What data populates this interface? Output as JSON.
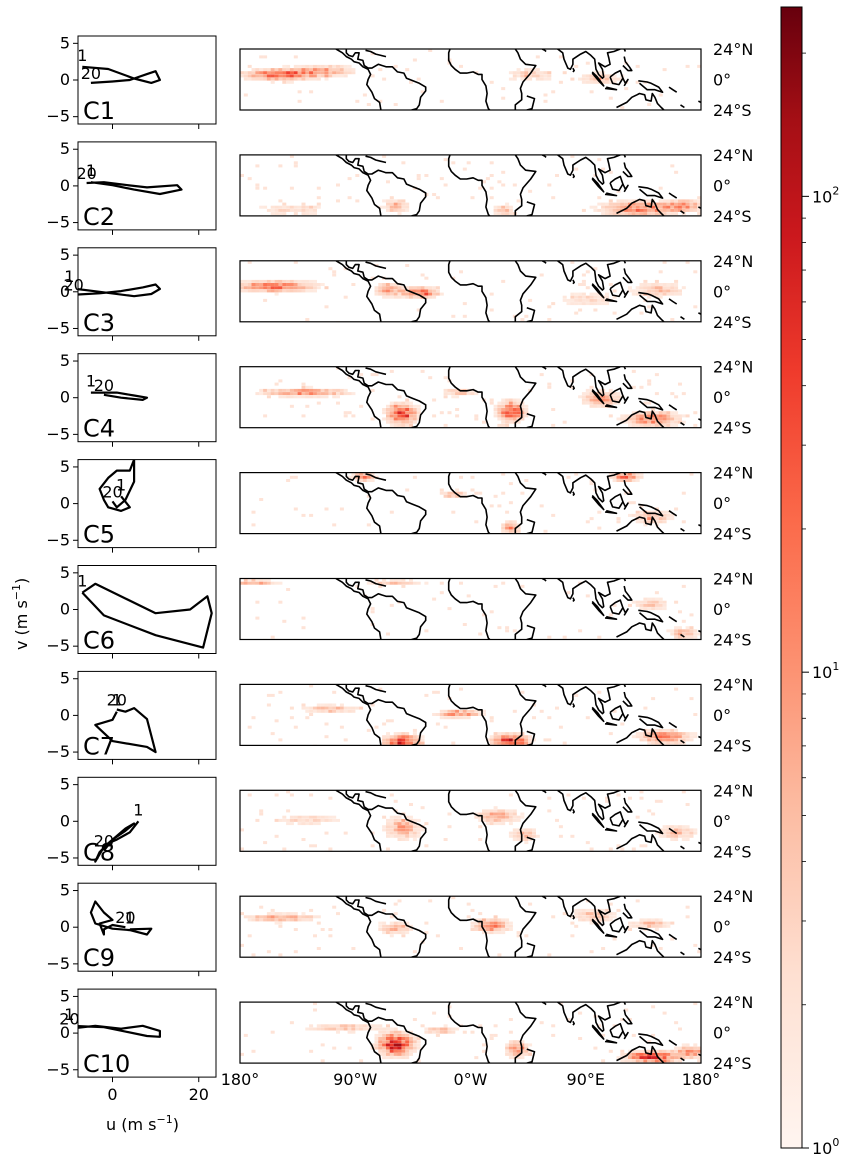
{
  "chart_data": {
    "type": "line",
    "panels": [
      {
        "label": "C1",
        "start_label": "1",
        "end_label": "20",
        "trajectory": [
          [
            -7,
            1.8
          ],
          [
            -1,
            1.5
          ],
          [
            5,
            0.2
          ],
          [
            9,
            -0.4
          ],
          [
            11,
            0
          ],
          [
            10,
            1.2
          ],
          [
            8,
            0.8
          ],
          [
            4,
            0
          ],
          [
            0,
            -0.2
          ],
          [
            -5,
            -0.4
          ]
        ]
      },
      {
        "label": "C2",
        "start_label": "1",
        "end_label": "20",
        "trajectory": [
          [
            -5,
            0.5
          ],
          [
            0,
            0.1
          ],
          [
            5,
            -0.5
          ],
          [
            11,
            -1.1
          ],
          [
            16,
            -0.5
          ],
          [
            15,
            0.1
          ],
          [
            8,
            -0.2
          ],
          [
            2,
            0.2
          ],
          [
            -2,
            0.5
          ],
          [
            -6,
            0.4
          ]
        ]
      },
      {
        "label": "C3",
        "start_label": "1",
        "end_label": "20",
        "trajectory": [
          [
            -10,
            0.5
          ],
          [
            -3,
            0
          ],
          [
            5,
            -0.6
          ],
          [
            9,
            -0.3
          ],
          [
            11,
            0.4
          ],
          [
            10,
            1
          ],
          [
            7,
            0.6
          ],
          [
            2,
            0.1
          ],
          [
            -3,
            -0.2
          ],
          [
            -9,
            -0.4
          ]
        ]
      },
      {
        "label": "C4",
        "start_label": "1",
        "end_label": "20",
        "trajectory": [
          [
            -5,
            0.7
          ],
          [
            1,
            0.7
          ],
          [
            5,
            0.3
          ],
          [
            8,
            0
          ],
          [
            7,
            -0.3
          ],
          [
            2,
            0
          ],
          [
            -2,
            0.4
          ]
        ]
      },
      {
        "label": "C5",
        "start_label": "1",
        "end_label": "20",
        "trajectory": [
          [
            2,
            1
          ],
          [
            4,
            -0.5
          ],
          [
            2,
            -1
          ],
          [
            -1,
            -0.5
          ],
          [
            -2,
            0.5
          ],
          [
            -3,
            2
          ],
          [
            -1,
            3.5
          ],
          [
            1,
            4.5
          ],
          [
            4,
            4.5
          ],
          [
            5,
            6
          ],
          [
            5,
            3
          ],
          [
            3,
            0.5
          ],
          [
            1,
            -0.5
          ],
          [
            0,
            0.3
          ]
        ]
      },
      {
        "label": "C6",
        "start_label": "1",
        "end_label": "",
        "trajectory": [
          [
            -7,
            2.3
          ],
          [
            -4,
            3.5
          ],
          [
            3,
            1.5
          ],
          [
            10,
            -0.5
          ],
          [
            18,
            0
          ],
          [
            22,
            1.8
          ],
          [
            23,
            -0.5
          ],
          [
            21,
            -5.2
          ],
          [
            10,
            -3.5
          ],
          [
            -2,
            -0.8
          ],
          [
            -7,
            2.3
          ]
        ]
      },
      {
        "label": "C7",
        "start_label": "1",
        "end_label": "20",
        "trajectory": [
          [
            1,
            0.5
          ],
          [
            0,
            -0.6
          ],
          [
            -4,
            -1.3
          ],
          [
            0,
            -3.5
          ],
          [
            8,
            -4.3
          ],
          [
            10,
            -5
          ],
          [
            8,
            -0.5
          ],
          [
            5,
            1
          ],
          [
            3,
            0.5
          ],
          [
            1,
            0.8
          ]
        ]
      },
      {
        "label": "C8",
        "start_label": "1",
        "end_label": "20",
        "trajectory": [
          [
            6,
            0
          ],
          [
            4,
            -1.5
          ],
          [
            1,
            -2.5
          ],
          [
            -1,
            -3
          ],
          [
            -3,
            -4.2
          ],
          [
            -4,
            -5.5
          ],
          [
            -2,
            -3.5
          ],
          [
            1,
            -2
          ],
          [
            3,
            -1
          ],
          [
            5,
            -0.3
          ],
          [
            3,
            -1.3
          ],
          [
            0,
            -2.5
          ],
          [
            -2,
            -4
          ]
        ]
      },
      {
        "label": "C9",
        "start_label": "1",
        "end_label": "20",
        "trajectory": [
          [
            4,
            -0.3
          ],
          [
            9,
            -0.2
          ],
          [
            8,
            -1
          ],
          [
            4,
            -0.4
          ],
          [
            0,
            -0.2
          ],
          [
            -4,
            0.5
          ],
          [
            -5,
            2
          ],
          [
            -4,
            3.5
          ],
          [
            -2,
            2
          ],
          [
            0,
            1
          ],
          [
            -3,
            0.5
          ],
          [
            -2,
            -1
          ],
          [
            -2,
            -0.3
          ],
          [
            0,
            0.3
          ],
          [
            3,
            0
          ]
        ]
      },
      {
        "label": "C10",
        "start_label": "1",
        "end_label": "20",
        "trajectory": [
          [
            -10,
            1
          ],
          [
            -2,
            0.8
          ],
          [
            3,
            0.2
          ],
          [
            8,
            -0.4
          ],
          [
            11,
            -0.5
          ],
          [
            11,
            0.3
          ],
          [
            7,
            1
          ],
          [
            2,
            0.6
          ],
          [
            -4,
            1
          ],
          [
            -10,
            0.6
          ]
        ]
      }
    ],
    "left_axis": {
      "xlim": [
        -8,
        24
      ],
      "ylim": [
        -6,
        6
      ],
      "x_ticks": [
        "0",
        "20"
      ],
      "x_tick_values": [
        0,
        20
      ],
      "y_ticks": [
        "5",
        "0",
        "−5"
      ],
      "y_tick_values": [
        5,
        0,
        -5
      ],
      "xlabel_base": "u (m s",
      "xlabel_sup": "−1",
      "xlabel_end": ")",
      "ylabel_base": "v (m s",
      "ylabel_sup": "−1",
      "ylabel_end": ")"
    },
    "map_axis": {
      "lon_range": [
        -180,
        180
      ],
      "lat_range": [
        -24,
        24
      ],
      "x_ticks": [
        "180°",
        "90°W",
        "0°W",
        "90°E",
        "180°"
      ],
      "x_tick_values": [
        -180,
        -90,
        0,
        90,
        180
      ],
      "y_ticks": [
        "24°N",
        "0°",
        "24°S"
      ],
      "y_tick_values": [
        24,
        0,
        -24
      ]
    },
    "colorbar": {
      "scale": "log",
      "range": [
        1,
        250
      ],
      "cmap": "Reds",
      "ticks": [
        {
          "base": "10",
          "exp": "0",
          "value": 1
        },
        {
          "base": "10",
          "exp": "1",
          "value": 10
        },
        {
          "base": "10",
          "exp": "2",
          "value": 100
        }
      ]
    },
    "density_hotspots": [
      [
        {
          "lon": -150,
          "lat": 5,
          "v": 0.7,
          "sx": 25,
          "sy": 4
        },
        {
          "lon": -115,
          "lat": 8,
          "v": 0.4,
          "sx": 20,
          "sy": 4
        },
        {
          "lon": 100,
          "lat": 2,
          "v": 0.3,
          "sx": 15,
          "sy": 4
        },
        {
          "lon": 45,
          "lat": 5,
          "v": 0.2,
          "sx": 20,
          "sy": 5
        }
      ],
      [
        {
          "lon": 130,
          "lat": -17,
          "v": 0.6,
          "sx": 25,
          "sy": 5
        },
        {
          "lon": 165,
          "lat": -15,
          "v": 0.5,
          "sx": 12,
          "sy": 4
        },
        {
          "lon": -60,
          "lat": -15,
          "v": 0.3,
          "sx": 10,
          "sy": 5
        },
        {
          "lon": -140,
          "lat": -18,
          "v": 0.2,
          "sx": 25,
          "sy": 4
        },
        {
          "lon": 25,
          "lat": -18,
          "v": 0.3,
          "sx": 8,
          "sy": 4
        }
      ],
      [
        {
          "lon": -155,
          "lat": 5,
          "v": 0.6,
          "sx": 28,
          "sy": 4
        },
        {
          "lon": -40,
          "lat": 0,
          "v": 0.7,
          "sx": 12,
          "sy": 4
        },
        {
          "lon": -65,
          "lat": 2,
          "v": 0.4,
          "sx": 10,
          "sy": 5
        },
        {
          "lon": 145,
          "lat": 2,
          "v": 0.3,
          "sx": 18,
          "sy": 5
        },
        {
          "lon": 90,
          "lat": -5,
          "v": 0.2,
          "sx": 20,
          "sy": 5
        }
      ],
      [
        {
          "lon": -55,
          "lat": -12,
          "v": 0.85,
          "sx": 10,
          "sy": 7
        },
        {
          "lon": 30,
          "lat": -10,
          "v": 0.8,
          "sx": 9,
          "sy": 7
        },
        {
          "lon": -130,
          "lat": 5,
          "v": 0.5,
          "sx": 30,
          "sy": 3
        },
        {
          "lon": 140,
          "lat": -16,
          "v": 0.6,
          "sx": 18,
          "sy": 5
        },
        {
          "lon": 100,
          "lat": 0,
          "v": 0.4,
          "sx": 14,
          "sy": 6
        },
        {
          "lon": -10,
          "lat": 5,
          "v": 0.3,
          "sx": 12,
          "sy": 3
        }
      ],
      [
        {
          "lon": 120,
          "lat": 22,
          "v": 0.7,
          "sx": 10,
          "sy": 3
        },
        {
          "lon": 30,
          "lat": -18,
          "v": 0.5,
          "sx": 6,
          "sy": 4
        },
        {
          "lon": -85,
          "lat": 22,
          "v": 0.5,
          "sx": 8,
          "sy": 3
        },
        {
          "lon": -15,
          "lat": 8,
          "v": 0.3,
          "sx": 10,
          "sy": 3
        },
        {
          "lon": 140,
          "lat": -10,
          "v": 0.3,
          "sx": 15,
          "sy": 5
        }
      ],
      [
        {
          "lon": -170,
          "lat": 22,
          "v": 0.4,
          "sx": 15,
          "sy": 2
        },
        {
          "lon": -60,
          "lat": 22,
          "v": 0.3,
          "sx": 20,
          "sy": 2
        },
        {
          "lon": 140,
          "lat": 5,
          "v": 0.3,
          "sx": 12,
          "sy": 4
        },
        {
          "lon": 165,
          "lat": -18,
          "v": 0.35,
          "sx": 10,
          "sy": 4
        }
      ],
      [
        {
          "lon": -55,
          "lat": -20,
          "v": 0.85,
          "sx": 12,
          "sy": 5
        },
        {
          "lon": 30,
          "lat": -20,
          "v": 0.9,
          "sx": 12,
          "sy": 5
        },
        {
          "lon": -10,
          "lat": 2,
          "v": 0.5,
          "sx": 15,
          "sy": 3
        },
        {
          "lon": 150,
          "lat": -16,
          "v": 0.5,
          "sx": 18,
          "sy": 5
        },
        {
          "lon": -110,
          "lat": 6,
          "v": 0.3,
          "sx": 20,
          "sy": 3
        }
      ],
      [
        {
          "lon": 20,
          "lat": 5,
          "v": 0.4,
          "sx": 15,
          "sy": 5
        },
        {
          "lon": -55,
          "lat": -5,
          "v": 0.4,
          "sx": 12,
          "sy": 8
        },
        {
          "lon": 40,
          "lat": -10,
          "v": 0.3,
          "sx": 10,
          "sy": 5
        },
        {
          "lon": 160,
          "lat": -8,
          "v": 0.3,
          "sx": 15,
          "sy": 5
        },
        {
          "lon": -130,
          "lat": 2,
          "v": 0.2,
          "sx": 25,
          "sy": 4
        }
      ],
      [
        {
          "lon": -150,
          "lat": 8,
          "v": 0.4,
          "sx": 25,
          "sy": 3
        },
        {
          "lon": 15,
          "lat": 2,
          "v": 0.5,
          "sx": 12,
          "sy": 5
        },
        {
          "lon": -60,
          "lat": 0,
          "v": 0.3,
          "sx": 12,
          "sy": 5
        },
        {
          "lon": 95,
          "lat": 10,
          "v": 0.3,
          "sx": 15,
          "sy": 5
        },
        {
          "lon": 140,
          "lat": 3,
          "v": 0.3,
          "sx": 15,
          "sy": 4
        }
      ],
      [
        {
          "lon": -60,
          "lat": -8,
          "v": 0.9,
          "sx": 12,
          "sy": 8
        },
        {
          "lon": 140,
          "lat": -18,
          "v": 0.8,
          "sx": 18,
          "sy": 4
        },
        {
          "lon": 170,
          "lat": -14,
          "v": 0.6,
          "sx": 10,
          "sy": 4
        },
        {
          "lon": 35,
          "lat": -12,
          "v": 0.5,
          "sx": 8,
          "sy": 6
        },
        {
          "lon": -100,
          "lat": 5,
          "v": 0.3,
          "sx": 25,
          "sy": 3
        },
        {
          "lon": -25,
          "lat": 3,
          "v": 0.3,
          "sx": 12,
          "sy": 3
        }
      ]
    ],
    "colors": {
      "trajectory": "#000000",
      "coastline": "#000000",
      "cmap_low": "#fff5f0",
      "cmap_mid": "#fb6a4a",
      "cmap_high": "#67000d"
    }
  }
}
